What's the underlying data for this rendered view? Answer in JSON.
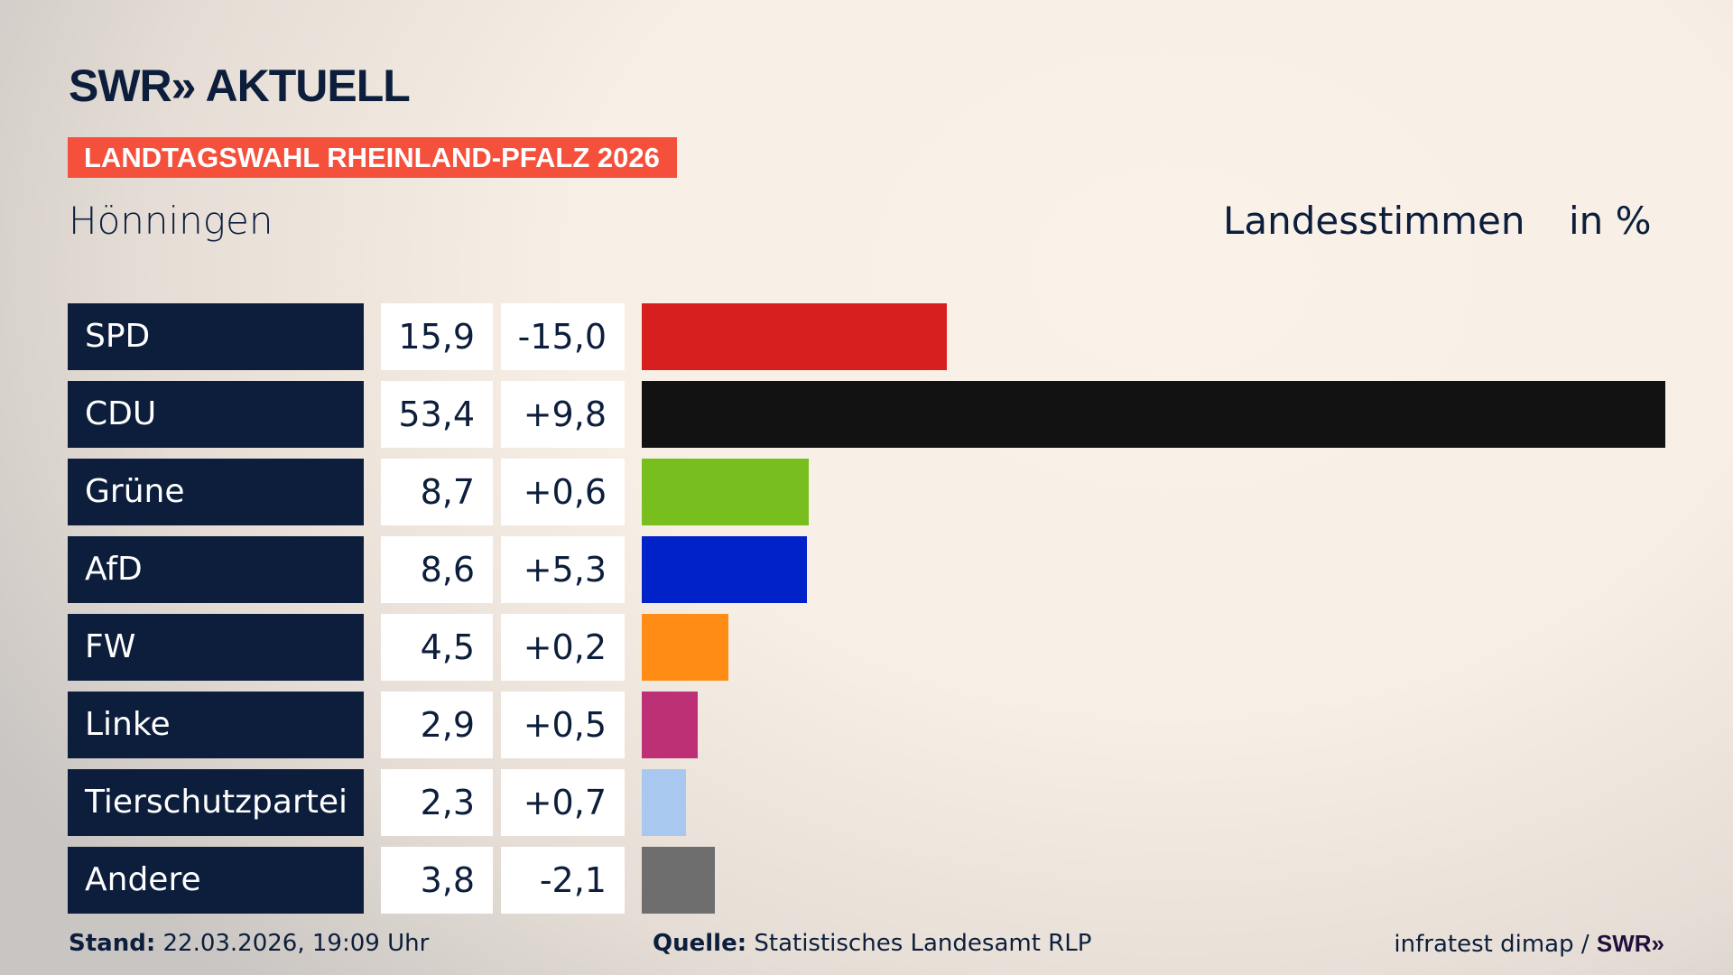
{
  "header": {
    "logo": "SWR» AKTUELL",
    "banner": "LANDTAGSWAHL RHEINLAND-PFALZ 2026",
    "place": "Hönningen",
    "metric": "Landesstimmen",
    "unit": "in %"
  },
  "colors": {
    "navy": "#0c1e3c",
    "banner": "#f5503c"
  },
  "chart_data": {
    "type": "bar",
    "orientation": "horizontal",
    "categories": [
      "SPD",
      "CDU",
      "Grüne",
      "AfD",
      "FW",
      "Linke",
      "Tierschutzpartei",
      "Andere"
    ],
    "values": [
      15.9,
      53.4,
      8.7,
      8.6,
      4.5,
      2.9,
      2.3,
      3.8
    ],
    "values_label": [
      "15,9",
      "53,4",
      "8,7",
      "8,6",
      "4,5",
      "2,9",
      "2,3",
      "3,8"
    ],
    "change_label": [
      "-15,0",
      "+9,8",
      "+0,6",
      "+5,3",
      "+0,2",
      "+0,5",
      "+0,7",
      "-2,1"
    ],
    "change": [
      -15.0,
      9.8,
      0.6,
      5.3,
      0.2,
      0.5,
      0.7,
      -2.1
    ],
    "colors": [
      "#d71f1f",
      "#121212",
      "#78be1e",
      "#0022c8",
      "#ff8c14",
      "#be3075",
      "#a8c8f0",
      "#6e6e6e"
    ],
    "xlim": [
      0,
      53.4
    ]
  },
  "footer": {
    "stand_label": "Stand:",
    "stand": " 22.03.2026, 19:09 Uhr",
    "source_label": "Quelle:",
    "source": " Statistisches Landesamt RLP",
    "credit": "infratest dimap / ",
    "credit_logo": "SWR»"
  }
}
